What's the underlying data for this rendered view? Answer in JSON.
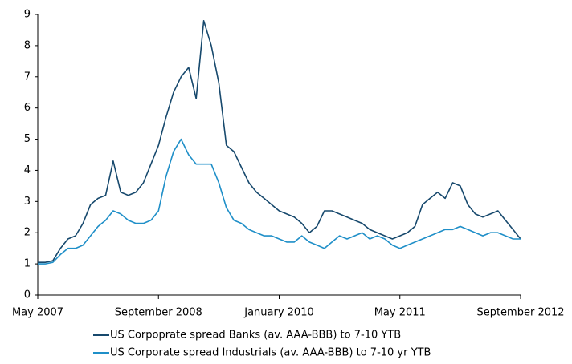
{
  "chart_data": {
    "type": "line",
    "x": [
      "2007-05",
      "2007-06",
      "2007-07",
      "2007-08",
      "2007-09",
      "2007-10",
      "2007-11",
      "2007-12",
      "2008-01",
      "2008-02",
      "2008-03",
      "2008-04",
      "2008-05",
      "2008-06",
      "2008-07",
      "2008-08",
      "2008-09",
      "2008-10",
      "2008-11",
      "2008-12",
      "2009-01",
      "2009-02",
      "2009-03",
      "2009-04",
      "2009-05",
      "2009-06",
      "2009-07",
      "2009-08",
      "2009-09",
      "2009-10",
      "2009-11",
      "2009-12",
      "2010-01",
      "2010-02",
      "2010-03",
      "2010-04",
      "2010-05",
      "2010-06",
      "2010-07",
      "2010-08",
      "2010-09",
      "2010-10",
      "2010-11",
      "2010-12",
      "2011-01",
      "2011-02",
      "2011-03",
      "2011-04",
      "2011-05",
      "2011-06",
      "2011-07",
      "2011-08",
      "2011-09",
      "2011-10",
      "2011-11",
      "2011-12",
      "2012-01",
      "2012-02",
      "2012-03",
      "2012-04",
      "2012-05",
      "2012-06",
      "2012-07",
      "2012-08",
      "2012-09"
    ],
    "series": [
      {
        "name": "US Corpoprate spread Banks (av. AAA-BBB) to 7-10 YTB",
        "color": "#17496d",
        "values": [
          1.05,
          1.05,
          1.1,
          1.5,
          1.8,
          1.9,
          2.3,
          2.9,
          3.1,
          3.2,
          4.3,
          3.3,
          3.2,
          3.3,
          3.6,
          4.2,
          4.8,
          5.7,
          6.5,
          7.0,
          7.3,
          6.3,
          8.8,
          8.0,
          6.8,
          4.8,
          4.6,
          4.1,
          3.6,
          3.3,
          3.1,
          2.9,
          2.7,
          2.6,
          2.5,
          2.3,
          2.0,
          2.2,
          2.7,
          2.7,
          2.6,
          2.5,
          2.4,
          2.3,
          2.1,
          2.0,
          1.9,
          1.8,
          1.9,
          2.0,
          2.2,
          2.9,
          3.1,
          3.3,
          3.1,
          3.6,
          3.5,
          2.9,
          2.6,
          2.5,
          2.6,
          2.7,
          2.4,
          2.1,
          1.8
        ]
      },
      {
        "name": "US Corporate spread Industrials (av. AAA-BBB) to 7-10 yr YTB",
        "color": "#1f8fc8",
        "values": [
          1.0,
          1.0,
          1.05,
          1.3,
          1.5,
          1.5,
          1.6,
          1.9,
          2.2,
          2.4,
          2.7,
          2.6,
          2.4,
          2.3,
          2.3,
          2.4,
          2.7,
          3.8,
          4.6,
          5.0,
          4.5,
          4.2,
          4.2,
          4.2,
          3.6,
          2.8,
          2.4,
          2.3,
          2.1,
          2.0,
          1.9,
          1.9,
          1.8,
          1.7,
          1.7,
          1.9,
          1.7,
          1.6,
          1.5,
          1.7,
          1.9,
          1.8,
          1.9,
          2.0,
          1.8,
          1.9,
          1.8,
          1.6,
          1.5,
          1.6,
          1.7,
          1.8,
          1.9,
          2.0,
          2.1,
          2.1,
          2.2,
          2.1,
          2.0,
          1.9,
          2.0,
          2.0,
          1.9,
          1.8,
          1.8
        ]
      }
    ],
    "xlim": [
      "2007-05",
      "2012-09"
    ],
    "xticks": [
      {
        "value": "2007-05",
        "label": "May 2007"
      },
      {
        "value": "2008-09",
        "label": "September 2008"
      },
      {
        "value": "2010-01",
        "label": "January 2010"
      },
      {
        "value": "2011-05",
        "label": "May 2011"
      },
      {
        "value": "2012-09",
        "label": "September 2012"
      }
    ],
    "ylim": [
      0,
      9
    ],
    "yticks": [
      0,
      1,
      2,
      3,
      4,
      5,
      6,
      7,
      8,
      9
    ],
    "grid": false,
    "legend": "bottom"
  }
}
